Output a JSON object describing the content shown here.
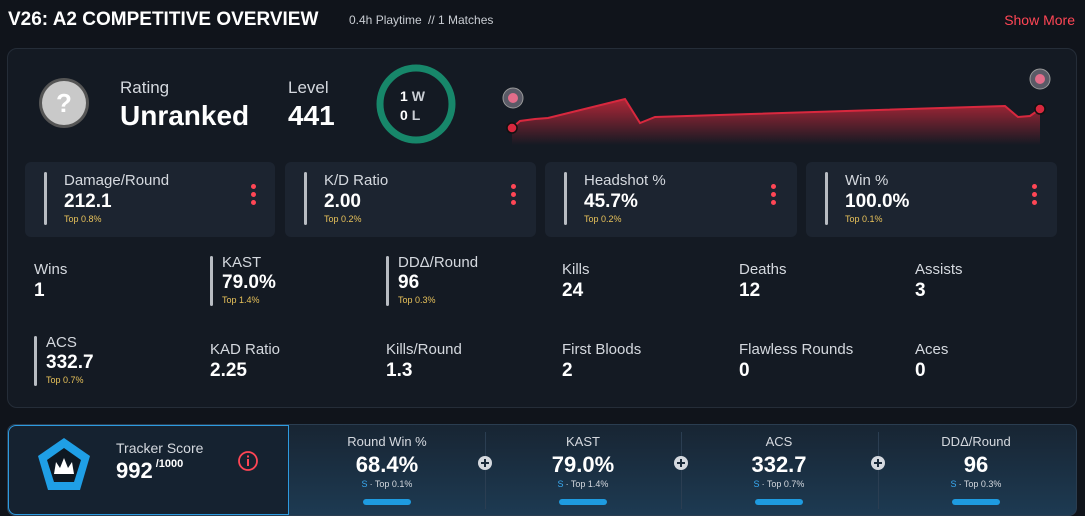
{
  "header": {
    "title": "V26: A2 COMPETITIVE OVERVIEW",
    "playtime": "0.4h Playtime",
    "matches": "// 1 Matches",
    "show_more": "Show More"
  },
  "summary": {
    "icon": "?",
    "rating_label": "Rating",
    "rating": "Unranked",
    "level_label": "Level",
    "level": "441",
    "wins": "1",
    "wins_label": "W",
    "losses": "0",
    "losses_label": "L"
  },
  "cards": [
    {
      "label": "Damage/Round",
      "value": "212.1",
      "rank": "Top 0.8%"
    },
    {
      "label": "K/D Ratio",
      "value": "2.00",
      "rank": "Top 0.2%"
    },
    {
      "label": "Headshot %",
      "value": "45.7%",
      "rank": "Top 0.2%"
    },
    {
      "label": "Win %",
      "value": "100.0%",
      "rank": "Top 0.1%"
    }
  ],
  "stats": [
    [
      {
        "label": "Wins",
        "value": "1"
      },
      {
        "label": "KAST",
        "value": "79.0%",
        "rank": "Top 1.4%"
      },
      {
        "label": "DDΔ/Round",
        "value": "96",
        "rank": "Top 0.3%"
      },
      {
        "label": "Kills",
        "value": "24"
      },
      {
        "label": "Deaths",
        "value": "12"
      },
      {
        "label": "Assists",
        "value": "3"
      }
    ],
    [
      {
        "label": "ACS",
        "value": "332.7",
        "rank": "Top 0.7%"
      },
      {
        "label": "KAD Ratio",
        "value": "2.25"
      },
      {
        "label": "Kills/Round",
        "value": "1.3"
      },
      {
        "label": "First Bloods",
        "value": "2"
      },
      {
        "label": "Flawless Rounds",
        "value": "0"
      },
      {
        "label": "Aces",
        "value": "0"
      }
    ]
  ],
  "tracker": {
    "label": "Tracker Score",
    "score": "992",
    "max": "/1000",
    "stats": [
      {
        "label": "Round Win %",
        "value": "68.4%",
        "tier": "S",
        "rank": "· Top 0.1%"
      },
      {
        "label": "KAST",
        "value": "79.0%",
        "tier": "S",
        "rank": "· Top 1.4%"
      },
      {
        "label": "ACS",
        "value": "332.7",
        "tier": "S",
        "rank": "· Top 0.7%"
      },
      {
        "label": "DDΔ/Round",
        "value": "96",
        "tier": "S",
        "rank": "· Top 0.3%"
      }
    ]
  }
}
